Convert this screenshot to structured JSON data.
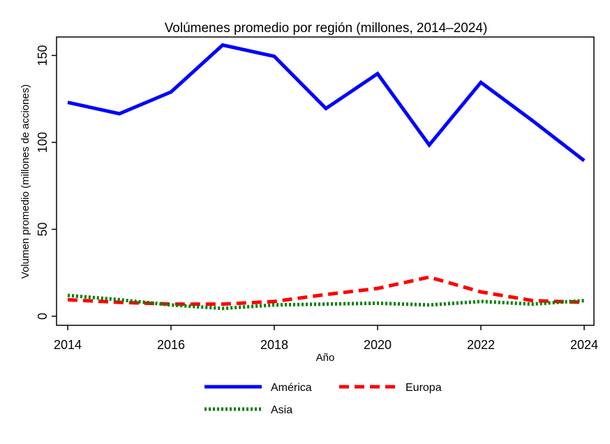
{
  "chart_data": {
    "type": "line",
    "title": "Volúmenes promedio por región (millones, 2014–2024)",
    "xlabel": "Año",
    "ylabel": "Volumen promedio (millones de acciones)",
    "x": [
      2014,
      2015,
      2016,
      2017,
      2018,
      2019,
      2020,
      2021,
      2022,
      2023,
      2024
    ],
    "xlim": [
      2014,
      2024
    ],
    "ylim": [
      0,
      155
    ],
    "xticks": [
      2014,
      2016,
      2018,
      2020,
      2022,
      2024
    ],
    "yticks": [
      0,
      50,
      100,
      150
    ],
    "grid": false,
    "legend_position": "bottom",
    "series": [
      {
        "name": "América",
        "color": "#0000ff",
        "style": "solid",
        "values": [
          123,
          116.5,
          129,
          156,
          149.5,
          119.5,
          139.5,
          98.5,
          134.5,
          112.5,
          89.5
        ]
      },
      {
        "name": "Europa",
        "color": "#ff0000",
        "style": "dashed",
        "values": [
          9.5,
          8,
          7,
          7,
          8.5,
          12.5,
          16,
          22.5,
          14,
          9,
          8
        ]
      },
      {
        "name": "Asia",
        "color": "#008000",
        "style": "dotted",
        "values": [
          12,
          9.5,
          6.5,
          4.5,
          6.5,
          7,
          7.5,
          6.5,
          8.5,
          7,
          9
        ]
      }
    ]
  }
}
